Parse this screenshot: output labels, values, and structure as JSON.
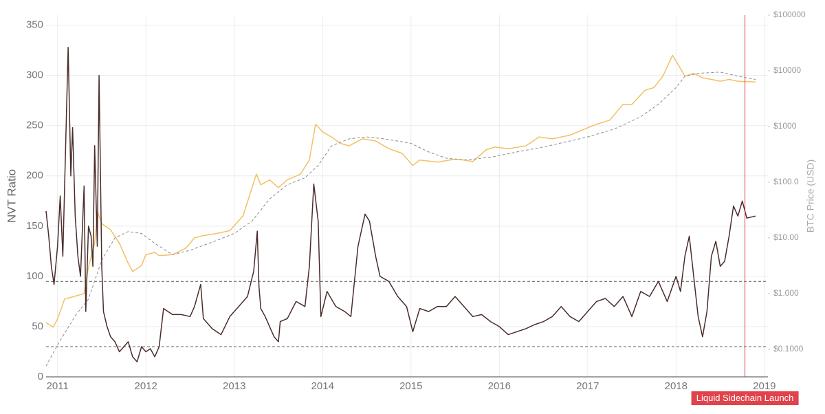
{
  "chart_data": {
    "type": "line",
    "ylabel": "NVT Ratio",
    "y2label": "BTC Price (USD)",
    "xlim": [
      2010.87,
      2019.04
    ],
    "xticks": [
      2011,
      2012,
      2013,
      2014,
      2015,
      2016,
      2017,
      2018,
      2019
    ],
    "ylim": [
      0,
      360
    ],
    "yticks": [
      0,
      50,
      100,
      150,
      200,
      250,
      300,
      350
    ],
    "y2lim": [
      0.032,
      100000
    ],
    "y2log": true,
    "y2ticks": [
      {
        "value": 100000,
        "label": "$100000"
      },
      {
        "value": 10000,
        "label": "$10000"
      },
      {
        "value": 1000,
        "label": "$1000"
      },
      {
        "value": 100,
        "label": "$100.0"
      },
      {
        "value": 10,
        "label": "$10.00"
      },
      {
        "value": 1,
        "label": "$1.000"
      },
      {
        "value": 0.1,
        "label": "$0.1000"
      }
    ],
    "grid": true,
    "hlines": [
      95,
      30
    ],
    "hline_color": "#555555",
    "annotation": {
      "x": 2018.78,
      "label": "Liquid Sidechain Launch",
      "color": "#e0434b"
    },
    "series": [
      {
        "color": "#f2c063",
        "axis": "y2",
        "dashed": false,
        "x": [
          2010.87,
          2010.95,
          2011.0,
          2011.08,
          2011.2,
          2011.3,
          2011.35,
          2011.42,
          2011.45,
          2011.5,
          2011.6,
          2011.7,
          2011.8,
          2011.85,
          2011.95,
          2012.0,
          2012.1,
          2012.15,
          2012.3,
          2012.45,
          2012.55,
          2012.65,
          2012.8,
          2012.95,
          2013.1,
          2013.25,
          2013.3,
          2013.4,
          2013.5,
          2013.6,
          2013.75,
          2013.85,
          2013.92,
          2014.0,
          2014.1,
          2014.2,
          2014.3,
          2014.45,
          2014.6,
          2014.75,
          2014.9,
          2015.02,
          2015.1,
          2015.3,
          2015.5,
          2015.6,
          2015.7,
          2015.85,
          2015.95,
          2016.1,
          2016.3,
          2016.45,
          2016.6,
          2016.8,
          2017.0,
          2017.1,
          2017.25,
          2017.4,
          2017.5,
          2017.65,
          2017.75,
          2017.85,
          2017.96,
          2018.05,
          2018.1,
          2018.2,
          2018.3,
          2018.4,
          2018.5,
          2018.6,
          2018.7,
          2018.8,
          2018.9
        ],
        "values": [
          0.3,
          0.25,
          0.35,
          0.8,
          0.9,
          1.0,
          3,
          8,
          30,
          18,
          14,
          8,
          3.5,
          2.5,
          3.2,
          5,
          5.5,
          4.8,
          5,
          6.5,
          10,
          11,
          12,
          13.5,
          25,
          140,
          90,
          110,
          80,
          110,
          140,
          250,
          1100,
          800,
          650,
          500,
          450,
          600,
          550,
          400,
          330,
          200,
          250,
          230,
          260,
          250,
          235,
          380,
          430,
          400,
          450,
          650,
          600,
          700,
          950,
          1100,
          1300,
          2500,
          2500,
          4500,
          5000,
          8000,
          19000,
          11000,
          8000,
          9000,
          7500,
          7000,
          6500,
          7000,
          6500,
          6400,
          6300
        ]
      },
      {
        "color": "#8c8c8c",
        "axis": "y2",
        "dashed": true,
        "x": [
          2010.87,
          2011.0,
          2011.2,
          2011.35,
          2011.5,
          2011.65,
          2011.8,
          2011.95,
          2012.1,
          2012.3,
          2012.5,
          2012.8,
          2013.0,
          2013.2,
          2013.4,
          2013.6,
          2013.8,
          2013.95,
          2014.1,
          2014.3,
          2014.5,
          2014.7,
          2015.0,
          2015.2,
          2015.4,
          2015.6,
          2015.9,
          2016.2,
          2016.5,
          2016.8,
          2017.0,
          2017.3,
          2017.6,
          2017.8,
          2018.0,
          2018.1,
          2018.25,
          2018.5,
          2018.7,
          2018.9
        ],
        "values": [
          0.05,
          0.12,
          0.4,
          0.8,
          4,
          10,
          13,
          12,
          8,
          5,
          6,
          9,
          12,
          20,
          50,
          90,
          120,
          200,
          450,
          600,
          650,
          600,
          500,
          350,
          270,
          250,
          280,
          350,
          430,
          550,
          650,
          900,
          1500,
          2500,
          5000,
          8000,
          9000,
          9500,
          8000,
          7000
        ]
      },
      {
        "color": "#4a2c2a",
        "axis": "y",
        "dashed": false,
        "x": [
          2010.87,
          2010.9,
          2010.93,
          2010.96,
          2011.0,
          2011.03,
          2011.06,
          2011.1,
          2011.12,
          2011.15,
          2011.17,
          2011.2,
          2011.23,
          2011.26,
          2011.3,
          2011.32,
          2011.35,
          2011.38,
          2011.4,
          2011.42,
          2011.45,
          2011.47,
          2011.5,
          2011.52,
          2011.56,
          2011.6,
          2011.65,
          2011.7,
          2011.75,
          2011.8,
          2011.85,
          2011.9,
          2011.95,
          2012.0,
          2012.05,
          2012.1,
          2012.15,
          2012.2,
          2012.3,
          2012.4,
          2012.5,
          2012.55,
          2012.62,
          2012.65,
          2012.75,
          2012.85,
          2012.95,
          2013.05,
          2013.15,
          2013.22,
          2013.26,
          2013.28,
          2013.3,
          2013.35,
          2013.45,
          2013.5,
          2013.52,
          2013.6,
          2013.7,
          2013.8,
          2013.85,
          2013.9,
          2013.95,
          2013.98,
          2014.05,
          2014.15,
          2014.25,
          2014.32,
          2014.4,
          2014.48,
          2014.53,
          2014.6,
          2014.65,
          2014.75,
          2014.85,
          2014.95,
          2015.02,
          2015.1,
          2015.2,
          2015.3,
          2015.4,
          2015.5,
          2015.6,
          2015.7,
          2015.8,
          2015.9,
          2016.0,
          2016.1,
          2016.2,
          2016.3,
          2016.4,
          2016.5,
          2016.6,
          2016.7,
          2016.8,
          2016.9,
          2017.0,
          2017.1,
          2017.2,
          2017.3,
          2017.4,
          2017.5,
          2017.6,
          2017.7,
          2017.8,
          2017.9,
          2018.0,
          2018.05,
          2018.1,
          2018.15,
          2018.2,
          2018.25,
          2018.3,
          2018.35,
          2018.4,
          2018.45,
          2018.5,
          2018.55,
          2018.6,
          2018.65,
          2018.7,
          2018.75,
          2018.8,
          2018.9
        ],
        "values": [
          165,
          140,
          110,
          92,
          130,
          180,
          120,
          260,
          328,
          200,
          248,
          160,
          120,
          100,
          190,
          65,
          150,
          140,
          110,
          230,
          130,
          300,
          110,
          65,
          50,
          40,
          35,
          25,
          30,
          35,
          20,
          15,
          30,
          25,
          28,
          20,
          30,
          68,
          62,
          62,
          60,
          70,
          92,
          58,
          48,
          42,
          60,
          70,
          80,
          105,
          145,
          90,
          68,
          60,
          40,
          35,
          55,
          58,
          75,
          70,
          110,
          192,
          155,
          60,
          85,
          70,
          65,
          60,
          130,
          162,
          155,
          120,
          100,
          95,
          80,
          70,
          45,
          68,
          65,
          70,
          70,
          80,
          70,
          60,
          62,
          55,
          50,
          42,
          45,
          48,
          52,
          55,
          60,
          70,
          60,
          55,
          65,
          75,
          78,
          70,
          80,
          60,
          85,
          80,
          95,
          75,
          100,
          85,
          120,
          140,
          100,
          60,
          40,
          65,
          120,
          135,
          110,
          115,
          140,
          170,
          160,
          175,
          158,
          160
        ]
      }
    ]
  }
}
